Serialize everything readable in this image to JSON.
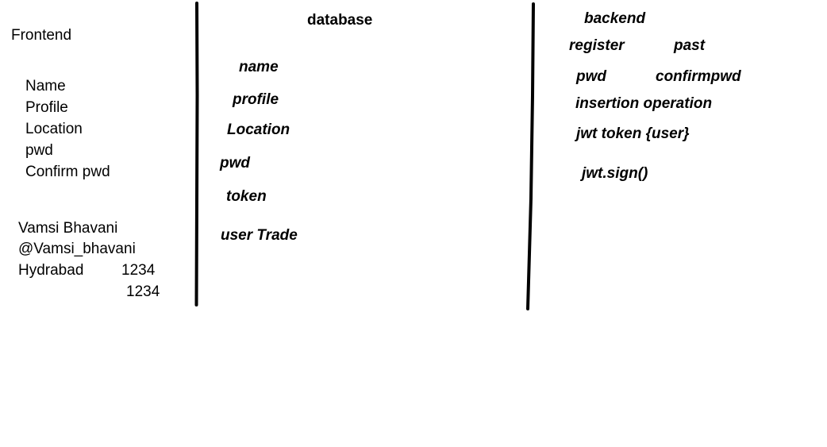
{
  "frontend": {
    "title": "Frontend",
    "fields": [
      "Name",
      "Profile",
      "Location",
      "pwd",
      "Confirm pwd"
    ],
    "sample": {
      "name": "Vamsi Bhavani",
      "handle": "@Vamsi_bhavani",
      "location": "Hydrabad",
      "pwd": "1234",
      "confirm_pwd": "1234"
    }
  },
  "database": {
    "title": "database",
    "fields": [
      "name",
      "profile",
      "Location",
      "pwd",
      "token",
      "user Trade"
    ]
  },
  "backend": {
    "title": "backend",
    "register": "register",
    "past": "past",
    "pwd": "pwd",
    "confirmpwd": "confirmpwd",
    "insertion": "insertion operation",
    "jwt_token": "jwt token {user}",
    "jwt_sign": "jwt.sign()"
  },
  "colors": {
    "ink": "#000000",
    "background": "#ffffff"
  }
}
